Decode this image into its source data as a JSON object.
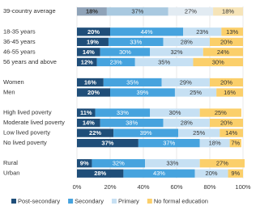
{
  "chart_data": {
    "type": "stacked-bar-horizontal",
    "categories": [
      "39-country average",
      null,
      "18-35 years",
      "36-45 years",
      "46-55 years",
      "56 years and above",
      null,
      "Women",
      "Men",
      null,
      "High lived poverty",
      "Moderate lived poverty",
      "Low lived poverty",
      "No lived poverty",
      null,
      "Rural",
      "Urban"
    ],
    "series": [
      {
        "name": "Post-secondary",
        "color": "#1f4e79",
        "first_row_color": "#8fa3b8",
        "values": [
          18,
          null,
          20,
          19,
          14,
          12,
          null,
          16,
          20,
          null,
          11,
          14,
          22,
          37,
          null,
          9,
          28
        ],
        "value_labels": [
          "18%",
          null,
          "20%",
          "19%",
          "14%",
          "12%",
          null,
          "16%",
          "20%",
          null,
          "11%",
          "14%",
          "22%",
          "37%",
          null,
          "9%",
          "28%"
        ]
      },
      {
        "name": "Secondary",
        "color": "#46a3de",
        "first_row_color": "#a9c9e0",
        "values": [
          37,
          null,
          44,
          33,
          30,
          23,
          null,
          35,
          39,
          null,
          33,
          38,
          39,
          37,
          null,
          32,
          43
        ],
        "value_labels": [
          "37%",
          null,
          "44%",
          "33%",
          "30%",
          "23%",
          null,
          "35%",
          "39%",
          null,
          "33%",
          "38%",
          "39%",
          "37%",
          null,
          "32%",
          "43%"
        ]
      },
      {
        "name": "Primary",
        "color": "#c6e0f3",
        "first_row_color": "#e2ebf2",
        "values": [
          27,
          null,
          23,
          28,
          32,
          35,
          null,
          29,
          25,
          null,
          30,
          28,
          25,
          18,
          null,
          33,
          20
        ],
        "value_labels": [
          "27%",
          null,
          "23%",
          "28%",
          "32%",
          "35%",
          null,
          "29%",
          "25%",
          null,
          "30%",
          "28%",
          "25%",
          "18%",
          null,
          "33%",
          "20%"
        ]
      },
      {
        "name": "No formal education",
        "color": "#fbcf6a",
        "first_row_color": "#f6e4b8",
        "values": [
          18,
          null,
          13,
          20,
          24,
          30,
          null,
          20,
          16,
          null,
          25,
          20,
          14,
          7,
          null,
          27,
          9
        ],
        "value_labels": [
          "18%",
          null,
          "13%",
          "20%",
          "24%",
          "30%",
          null,
          "20%",
          "16%",
          null,
          "25%",
          "20%",
          "14%",
          "7%",
          null,
          "27%",
          "9%"
        ]
      }
    ],
    "xlim": [
      0,
      100
    ],
    "xticks": [
      {
        "value": 0,
        "label": "0%"
      },
      {
        "value": 20,
        "label": "20%"
      },
      {
        "value": 40,
        "label": "40%"
      },
      {
        "value": 60,
        "label": "60%"
      },
      {
        "value": 80,
        "label": "80%"
      },
      {
        "value": 100,
        "label": "100%"
      }
    ],
    "grid": true,
    "legend": "bottom"
  }
}
